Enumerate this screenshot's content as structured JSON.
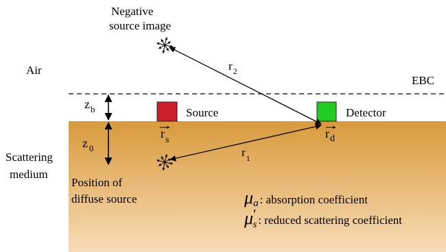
{
  "labels": {
    "negative_source_line1": "Negative",
    "negative_source_line2": "source image",
    "air": "Air",
    "r2_base": "r",
    "r2_sub": "2",
    "ebc": "EBC",
    "zb_base": "z",
    "zb_sub": "b",
    "source": "Source",
    "detector": "Detector",
    "scattering_line1": "Scattering",
    "scattering_line2": "medium",
    "z0_base": "z",
    "z0_sub": "0",
    "rs_base": "r",
    "rs_sub": "s",
    "rd_base": "r",
    "rd_sub": "d",
    "r1_base": "r",
    "r1_sub": "1",
    "diffuse_line1": "Position of",
    "diffuse_line2": "diffuse source",
    "mu_a_symbol": "μ",
    "mu_a_sub": "a",
    "mu_a_text": ": absorption coefficient",
    "mu_s_symbol": "μ",
    "mu_s_prime": "′",
    "mu_s_sub": "s",
    "mu_s_text": ": reduced scattering coefficient"
  },
  "colors": {
    "medium_top": "#d89a3c",
    "medium_bottom": "#f8dcb8",
    "source_box": "#cc1f2a",
    "detector_box": "#22cc22",
    "line": "#000000"
  }
}
